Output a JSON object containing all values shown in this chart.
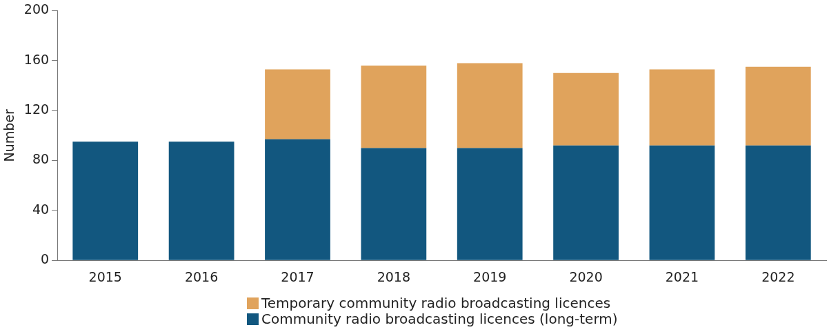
{
  "chart_data": {
    "type": "bar",
    "ylabel": "Number",
    "stacked": true,
    "categories": [
      "2015",
      "2016",
      "2017",
      "2018",
      "2019",
      "2020",
      "2021",
      "2022"
    ],
    "series": [
      {
        "name": "Community radio broadcasting licences (long-term)",
        "color": "#12577f",
        "values": [
          95,
          95,
          97,
          90,
          90,
          92,
          92,
          92
        ]
      },
      {
        "name": "Temporary community radio broadcasting licences",
        "color": "#e0a35c",
        "values": [
          null,
          null,
          56,
          66,
          68,
          58,
          61,
          63
        ]
      }
    ],
    "ylim": [
      0,
      200
    ],
    "yticks": [
      0,
      40,
      80,
      120,
      160,
      200
    ],
    "grid": false,
    "legend": "bottom"
  }
}
